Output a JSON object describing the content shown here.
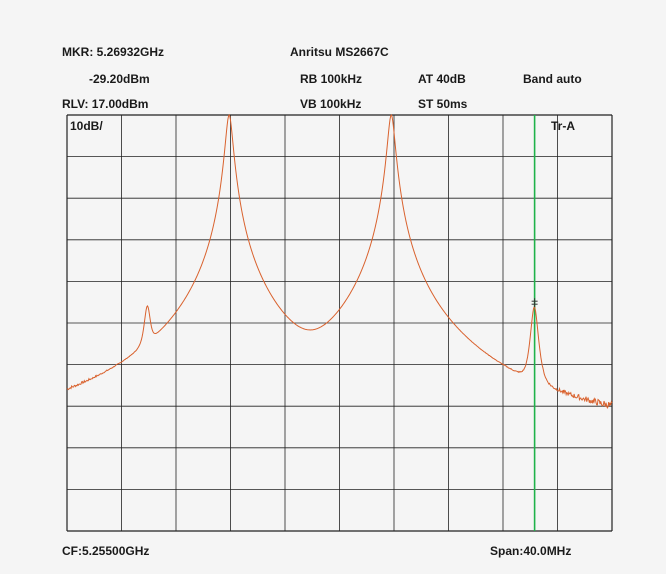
{
  "header": {
    "marker_freq": "MKR: 5.26932GHz",
    "marker_level": "-29.20dBm",
    "ref_level": "RLV: 17.00dBm",
    "model": "Anritsu MS2667C",
    "rbw": "RB 100kHz",
    "vbw": "VB 100kHz",
    "attenuation": "AT 40dB",
    "sweep_time": "ST 50ms",
    "band": "Band auto"
  },
  "grid": {
    "scale": "10dB/",
    "trace": "Tr-A"
  },
  "footer": {
    "center_freq": "CF:5.25500GHz",
    "span": "Span:40.0MHz"
  },
  "colors": {
    "trace": "#d9622e",
    "marker": "#1fb24a",
    "grid": "#222222",
    "background": "#f5f5f5"
  },
  "chart_data": {
    "type": "line",
    "title": "Anritsu MS2667C",
    "x_unit": "MHz",
    "y_unit": "dBm",
    "center_freq_ghz": 5.255,
    "span_mhz": 40.0,
    "ylim": [
      -83,
      17
    ],
    "ref_level_dbm": 17.0,
    "scale_db_per_div": 10,
    "grid": true,
    "noise_floor_dbm": -58,
    "series": [
      {
        "name": "Tr-A",
        "peaks": [
          {
            "freq_ghz": 5.2409,
            "level_dbm": -29.5
          },
          {
            "freq_ghz": 5.2469,
            "level_dbm": 17.0
          },
          {
            "freq_ghz": 5.2588,
            "level_dbm": 17.0
          },
          {
            "freq_ghz": 5.2693,
            "level_dbm": -29.2
          }
        ]
      }
    ],
    "marker": {
      "freq_ghz": 5.26932,
      "level_dbm": -29.2
    }
  }
}
